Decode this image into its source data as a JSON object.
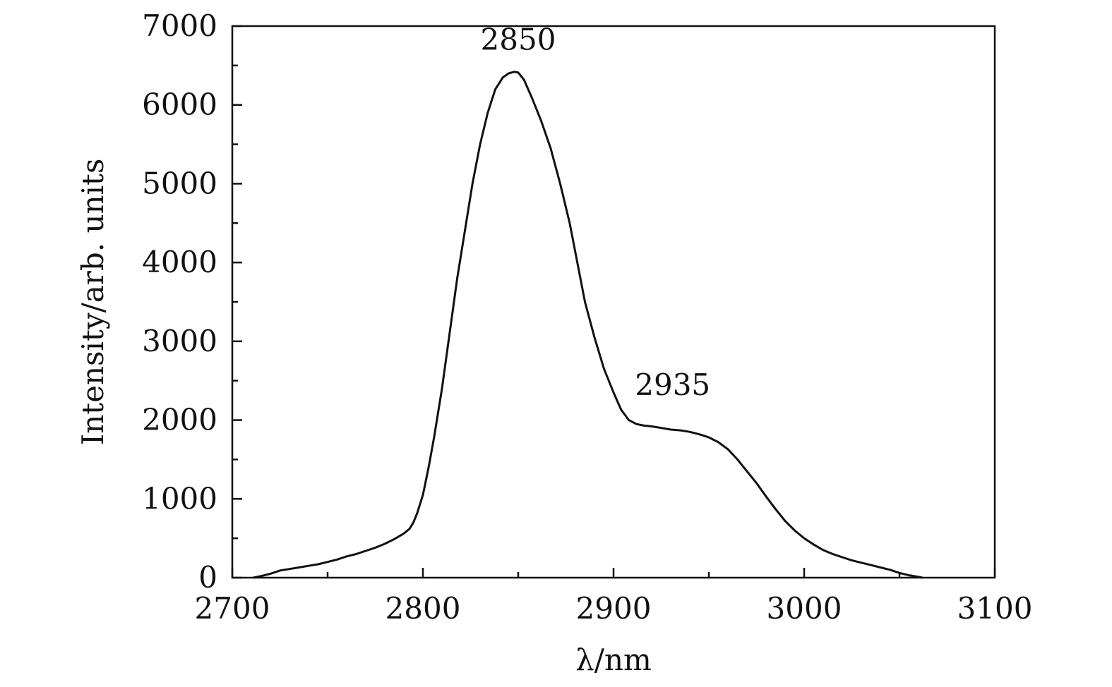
{
  "chart_data": {
    "type": "line",
    "title": "",
    "xlabel": "λ/nm",
    "ylabel": "Intensity/arb. units",
    "xlim": [
      2700,
      3100
    ],
    "ylim": [
      0,
      7000
    ],
    "x_ticks": [
      2700,
      2800,
      2900,
      3000,
      3100
    ],
    "x_minor_step": 50,
    "y_ticks": [
      0,
      1000,
      2000,
      3000,
      4000,
      5000,
      6000,
      7000
    ],
    "y_minor_step": 500,
    "grid": false,
    "legend": "none",
    "annotations": [
      {
        "text": "2850",
        "x": 2850,
        "y": 6700
      },
      {
        "text": "2935",
        "x": 2931,
        "y": 2320
      }
    ],
    "series": [
      {
        "color": "#111111",
        "points": [
          [
            2711,
            0
          ],
          [
            2715,
            20
          ],
          [
            2720,
            50
          ],
          [
            2725,
            90
          ],
          [
            2730,
            110
          ],
          [
            2735,
            130
          ],
          [
            2740,
            150
          ],
          [
            2745,
            170
          ],
          [
            2750,
            200
          ],
          [
            2755,
            230
          ],
          [
            2760,
            270
          ],
          [
            2765,
            300
          ],
          [
            2770,
            340
          ],
          [
            2775,
            380
          ],
          [
            2780,
            430
          ],
          [
            2785,
            490
          ],
          [
            2790,
            560
          ],
          [
            2793,
            620
          ],
          [
            2795,
            700
          ],
          [
            2797,
            820
          ],
          [
            2800,
            1050
          ],
          [
            2803,
            1400
          ],
          [
            2806,
            1800
          ],
          [
            2810,
            2400
          ],
          [
            2814,
            3100
          ],
          [
            2818,
            3800
          ],
          [
            2822,
            4400
          ],
          [
            2826,
            5000
          ],
          [
            2830,
            5500
          ],
          [
            2834,
            5900
          ],
          [
            2838,
            6200
          ],
          [
            2842,
            6350
          ],
          [
            2845,
            6400
          ],
          [
            2848,
            6420
          ],
          [
            2850,
            6410
          ],
          [
            2853,
            6320
          ],
          [
            2857,
            6100
          ],
          [
            2862,
            5800
          ],
          [
            2867,
            5450
          ],
          [
            2872,
            5000
          ],
          [
            2877,
            4500
          ],
          [
            2881,
            4000
          ],
          [
            2885,
            3500
          ],
          [
            2890,
            3050
          ],
          [
            2895,
            2650
          ],
          [
            2900,
            2350
          ],
          [
            2904,
            2130
          ],
          [
            2908,
            2000
          ],
          [
            2912,
            1950
          ],
          [
            2916,
            1930
          ],
          [
            2920,
            1920
          ],
          [
            2925,
            1900
          ],
          [
            2930,
            1880
          ],
          [
            2935,
            1870
          ],
          [
            2940,
            1850
          ],
          [
            2945,
            1820
          ],
          [
            2950,
            1780
          ],
          [
            2955,
            1720
          ],
          [
            2960,
            1630
          ],
          [
            2965,
            1500
          ],
          [
            2970,
            1350
          ],
          [
            2975,
            1200
          ],
          [
            2980,
            1030
          ],
          [
            2985,
            870
          ],
          [
            2990,
            720
          ],
          [
            2995,
            600
          ],
          [
            3000,
            500
          ],
          [
            3005,
            420
          ],
          [
            3010,
            350
          ],
          [
            3015,
            300
          ],
          [
            3020,
            260
          ],
          [
            3025,
            220
          ],
          [
            3030,
            190
          ],
          [
            3035,
            160
          ],
          [
            3040,
            130
          ],
          [
            3045,
            100
          ],
          [
            3050,
            60
          ],
          [
            3055,
            30
          ],
          [
            3060,
            10
          ],
          [
            3062,
            0
          ]
        ]
      }
    ]
  }
}
